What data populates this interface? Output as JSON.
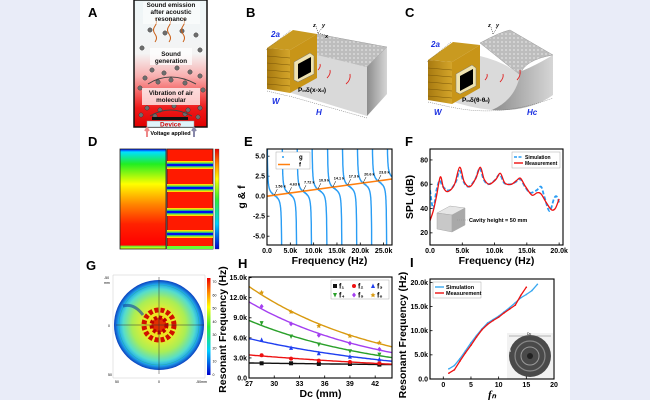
{
  "panel_labels": {
    "A": "A",
    "B": "B",
    "C": "C",
    "D": "D",
    "E": "E",
    "F": "F",
    "G": "G",
    "H": "H",
    "I": "I"
  },
  "panel_a": {
    "emission": [
      "Sound emission",
      "after acoustic",
      "resonance"
    ],
    "generation": [
      "Sound",
      "generation"
    ],
    "vibration": [
      "Vibration of air",
      "molecular"
    ],
    "device": "Device",
    "voltage": "Voltage applied",
    "colors": {
      "heat": "#ee1111",
      "molecule": "#6e6e6e",
      "wave": "#c85a10"
    }
  },
  "panel_b": {
    "dim_2a": "2a",
    "dim_w": "W",
    "dim_h": "H",
    "axes": {
      "z": "z",
      "y": "y",
      "x": "x"
    },
    "source": {
      "p": "P",
      "p_sub": "in",
      "expr": "δ(x-x",
      "expr_sub": "d",
      "close": ")"
    }
  },
  "panel_c": {
    "dim_2a": "2a",
    "dim_w": "W",
    "dim_h": "Hc",
    "axes": {
      "z": "z",
      "y": "y"
    },
    "source": {
      "p": "P",
      "p_sub": "in",
      "expr": "δ(θ-θ",
      "expr_sub": "d",
      "close": ")"
    }
  },
  "panel_g": {
    "left_ticks": [
      "-50",
      "0",
      "50"
    ],
    "left_unit": "mm",
    "bottom_ticks": [
      "50",
      "0",
      "-50mm"
    ],
    "colorbar_ticks": [
      "0",
      "10",
      "20",
      "30",
      "40",
      "50",
      "60",
      "70"
    ]
  },
  "panel_f_inset": "Cavity height = 50 mm",
  "panel_i_inset": {
    "dc": "Dc",
    "d": "d"
  },
  "chart_data": [
    {
      "panel": "E",
      "type": "line",
      "xlabel": "Frequency (Hz)",
      "ylabel": "g & f",
      "xlim": [
        0,
        26800
      ],
      "ylim": [
        -6.1,
        5.9
      ],
      "xticks": [
        0,
        5000,
        10000,
        15000,
        20000,
        25000
      ],
      "xtick_labels": [
        "0.0",
        "5.0k",
        "10.0k",
        "15.0k",
        "20.0k",
        "25.0k"
      ],
      "yticks": [
        -5,
        -2.5,
        0,
        2.5,
        5
      ],
      "ytick_labels": [
        "-5.0",
        "-2.5",
        "0.0",
        "2.5",
        "5.0"
      ],
      "legend": "top-left",
      "series": [
        {
          "name": "g",
          "color": "#2a9df4",
          "style": "dots",
          "poles": [
            0,
            3200,
            6400,
            9600,
            12900,
            16100,
            19300,
            22500,
            25700
          ]
        },
        {
          "name": "f",
          "color": "#ff7f0e",
          "style": "line",
          "x": [
            0,
            26800
          ],
          "y": [
            0,
            2.15
          ]
        }
      ],
      "annotations": [
        {
          "x": 1560,
          "label": "1.56 k"
        },
        {
          "x": 4630,
          "label": "4.63 k"
        },
        {
          "x": 7720,
          "label": "7.72 k"
        },
        {
          "x": 10900,
          "label": "10.9 k"
        },
        {
          "x": 14100,
          "label": "14.1 k"
        },
        {
          "x": 17300,
          "label": "17.3 k"
        },
        {
          "x": 20600,
          "label": "20.6 k"
        },
        {
          "x": 23800,
          "label": "23.8 k"
        }
      ]
    },
    {
      "panel": "F",
      "type": "line",
      "xlabel": "Frequency (Hz)",
      "ylabel": "SPL (dB)",
      "xlim": [
        0,
        20600
      ],
      "ylim": [
        10,
        89
      ],
      "xticks": [
        0,
        5000,
        10000,
        15000,
        20000
      ],
      "xtick_labels": [
        "0.0",
        "5.0k",
        "10.0k",
        "15.0k",
        "20.0k"
      ],
      "yticks": [
        20,
        40,
        60,
        80
      ],
      "ytick_labels": [
        "20",
        "40",
        "60",
        "80"
      ],
      "legend": "top-right",
      "series": [
        {
          "name": "Simulation",
          "color": "#2a9df4",
          "style": "dashed",
          "x": [
            0,
            500,
            1000,
            1500,
            2000,
            3000,
            4000,
            4600,
            5200,
            6000,
            7000,
            7700,
            8300,
            9000,
            10000,
            10800,
            11500,
            12500,
            13300,
            14000,
            14700,
            15500,
            16500,
            17200,
            17700,
            18500,
            19200,
            19600,
            20000
          ],
          "y": [
            55,
            40,
            55,
            63,
            58,
            55,
            62,
            71,
            62,
            58,
            64,
            73,
            64,
            60,
            63,
            68,
            61,
            60,
            62,
            64,
            58,
            53,
            55,
            58,
            50,
            38,
            48,
            50,
            45
          ]
        },
        {
          "name": "Measurement",
          "color": "#ee1111",
          "style": "solid",
          "x": [
            0,
            500,
            1000,
            1600,
            2100,
            2800,
            3800,
            4600,
            5300,
            6200,
            7100,
            7800,
            8400,
            9200,
            10200,
            10900,
            11600,
            12600,
            13400,
            14000,
            14800,
            15800,
            16600,
            17200,
            18000,
            18800,
            19400,
            20000
          ],
          "y": [
            30,
            38,
            50,
            66,
            57,
            54,
            60,
            74,
            62,
            58,
            65,
            74,
            64,
            60,
            64,
            69,
            61,
            60,
            63,
            65,
            58,
            51,
            53,
            52,
            45,
            39,
            40,
            48
          ]
        }
      ]
    },
    {
      "panel": "H",
      "type": "scatter",
      "xlabel": "Dc (mm)",
      "ylabel": "Resonant Frequency (Hz)",
      "xlim": [
        27,
        44
      ],
      "ylim": [
        0,
        15100
      ],
      "xticks": [
        27,
        30,
        33,
        36,
        39,
        42
      ],
      "xtick_labels": [
        "27",
        "30",
        "33",
        "36",
        "39",
        "42"
      ],
      "yticks": [
        0,
        3000,
        6000,
        9000,
        12000,
        15000
      ],
      "ytick_labels": [
        "0.0",
        "3.0k",
        "6.0k",
        "9.0k",
        "12.0k",
        "15.0k"
      ],
      "legend": "top-right",
      "x": [
        28.5,
        32,
        35.3,
        39,
        42.5
      ],
      "series": [
        {
          "name": "f₁",
          "color": "#111111",
          "marker": "square",
          "y": [
            2200,
            2200,
            2100,
            2100,
            2000
          ]
        },
        {
          "name": "f₂",
          "color": "#ee1111",
          "marker": "circle",
          "y": [
            3400,
            2900,
            2600,
            2400,
            2200
          ]
        },
        {
          "name": "f₃",
          "color": "#1f3ff0",
          "marker": "triangle-up",
          "y": [
            5700,
            4500,
            3700,
            3200,
            2800
          ]
        },
        {
          "name": "f₄",
          "color": "#2aa02a",
          "marker": "triangle-down",
          "y": [
            8200,
            6200,
            5000,
            4000,
            3500
          ]
        },
        {
          "name": "f₅",
          "color": "#a43ff0",
          "marker": "diamond",
          "y": [
            10700,
            8100,
            6400,
            5200,
            4300
          ]
        },
        {
          "name": "f₆",
          "color": "#d99a10",
          "marker": "star",
          "y": [
            12800,
            9900,
            7800,
            6300,
            5300
          ]
        }
      ]
    },
    {
      "panel": "I",
      "type": "line",
      "xlabel": "fₙ",
      "ylabel": "Resonant Frequency (Hz)",
      "xlim": [
        -2.4,
        20
      ],
      "ylim": [
        0,
        20700
      ],
      "xticks": [
        0,
        5,
        10,
        15,
        20
      ],
      "xtick_labels": [
        "0",
        "5",
        "10",
        "15",
        "20"
      ],
      "yticks": [
        0,
        5000,
        10000,
        15000,
        20000
      ],
      "ytick_labels": [
        "0.0",
        "5.0k",
        "10.0k",
        "15.0k",
        "20.0k"
      ],
      "legend": "top-left",
      "series": [
        {
          "name": "Simulation",
          "color": "#3aa8f0",
          "x": [
            1,
            2,
            3,
            4,
            5,
            6,
            7,
            8,
            9,
            10,
            11,
            12,
            13,
            14,
            15,
            16,
            17
          ],
          "y": [
            2100,
            2800,
            4200,
            5800,
            7500,
            9000,
            10400,
            11600,
            12300,
            13000,
            13900,
            14800,
            15800,
            16800,
            17500,
            18300,
            19600
          ]
        },
        {
          "name": "Measurement",
          "color": "#ee1111",
          "x": [
            1,
            2,
            3,
            4,
            5,
            6,
            7,
            8,
            9,
            10,
            11,
            12,
            13,
            14,
            15
          ],
          "y": [
            1200,
            1900,
            3700,
            5400,
            7000,
            8700,
            10200,
            11300,
            12100,
            12800,
            13700,
            14500,
            15300,
            17300,
            19000
          ]
        }
      ]
    }
  ]
}
